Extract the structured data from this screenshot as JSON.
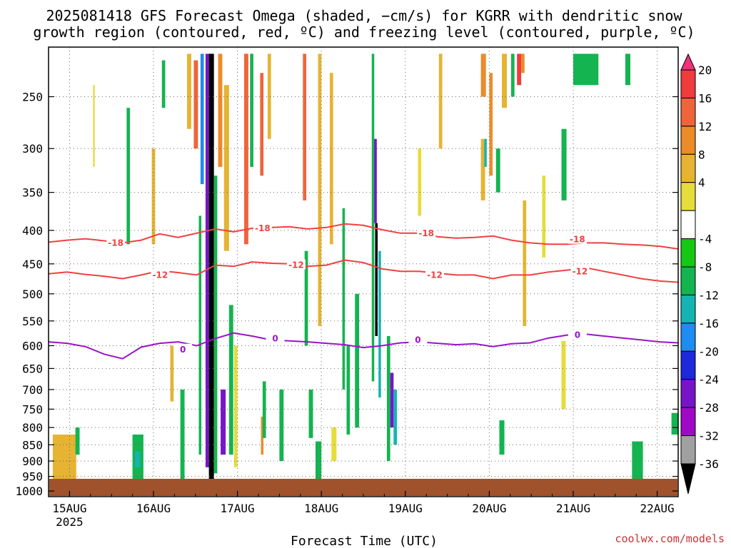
{
  "chart_data": {
    "type": "heatmap",
    "title_line1": "2025081418 GFS Forecast Omega (shaded, −cm/s) for KGRR with dendritic snow",
    "title_line2": "growth region (contoured, red, ºC) and freezing level (contoured, purple, ºC)",
    "xlabel": "Forecast Time (UTC)",
    "ylabel": "",
    "credit": "coolwx.com/models",
    "x_ticks": [
      "15AUG",
      "16AUG",
      "17AUG",
      "18AUG",
      "19AUG",
      "20AUG",
      "21AUG",
      "22AUG"
    ],
    "x_year": "2025",
    "y_ticks": [
      250,
      300,
      350,
      400,
      450,
      500,
      550,
      600,
      650,
      700,
      750,
      800,
      850,
      900,
      950,
      1000
    ],
    "y_scale": "log-pressure (hPa), inverted",
    "ylim": [
      1020,
      210
    ],
    "xlim_days": [
      14.75,
      22.25
    ],
    "grid": "dotted",
    "colorbar": {
      "labels": [
        "20",
        "16",
        "12",
        "8",
        "4",
        "-4",
        "-8",
        "-12",
        "-16",
        "-20",
        "-24",
        "-28",
        "-32",
        "-36"
      ],
      "colors_top_to_bottom": [
        "#f0327a",
        "#f03c3c",
        "#f0643c",
        "#eb8c28",
        "#e6b432",
        "#e6dc3c",
        "#ffffff",
        "#14c814",
        "#14b450",
        "#14b4b4",
        "#1e8cf0",
        "#1e28dc",
        "#7814c8",
        "#a008c8",
        "#a0a0a0",
        "#000000"
      ]
    },
    "contours": [
      {
        "name": "-18",
        "color": "#f04040",
        "values_hpa": [
          417,
          414,
          412,
          415,
          418,
          414,
          405,
          410,
          404,
          398,
          402,
          397,
          396,
          395,
          398,
          396,
          391,
          393,
          399,
          404,
          404,
          409,
          411,
          410,
          408,
          414,
          418,
          420,
          420,
          418,
          418,
          420,
          421,
          423,
          427
        ]
      },
      {
        "name": "-12",
        "color": "#f04040",
        "values_hpa": [
          466,
          463,
          467,
          470,
          474,
          468,
          461,
          464,
          468,
          452,
          454,
          447,
          449,
          450,
          454,
          452,
          444,
          448,
          458,
          462,
          462,
          465,
          468,
          468,
          474,
          468,
          468,
          463,
          460,
          456,
          462,
          468,
          474,
          478,
          480
        ]
      },
      {
        "name": "0",
        "color": "#9a14c8",
        "values_hpa": [
          592,
          595,
          602,
          618,
          628,
          603,
          595,
          592,
          600,
          585,
          574,
          580,
          588,
          590,
          592,
          595,
          598,
          604,
          600,
          594,
          592,
          595,
          598,
          596,
          602,
          596,
          594,
          584,
          578,
          576,
          580,
          584,
          588,
          592,
          594
        ]
      }
    ],
    "contour_labels": [
      {
        "text": "-18",
        "day": 15.55,
        "hpa": 418
      },
      {
        "text": "-18",
        "day": 17.3,
        "hpa": 397
      },
      {
        "text": "-18",
        "day": 19.25,
        "hpa": 404
      },
      {
        "text": "-18",
        "day": 21.05,
        "hpa": 413
      },
      {
        "text": "-12",
        "day": 16.08,
        "hpa": 468
      },
      {
        "text": "-12",
        "day": 17.7,
        "hpa": 452
      },
      {
        "text": "-12",
        "day": 19.35,
        "hpa": 468
      },
      {
        "text": "-12",
        "day": 21.08,
        "hpa": 462
      },
      {
        "text": "0",
        "day": 16.35,
        "hpa": 608
      },
      {
        "text": "0",
        "day": 17.45,
        "hpa": 585
      },
      {
        "text": "0",
        "day": 19.15,
        "hpa": 588
      },
      {
        "text": "0",
        "day": 21.05,
        "hpa": 578
      }
    ],
    "omega_cells": [
      {
        "d0": 16.62,
        "d1": 16.66,
        "p0": 215,
        "p1": 920,
        "v": -26
      },
      {
        "d0": 16.66,
        "d1": 16.72,
        "p0": 215,
        "p1": 960,
        "v": -40
      },
      {
        "d0": 16.72,
        "d1": 16.76,
        "p0": 330,
        "p1": 940,
        "v": -10
      },
      {
        "d0": 16.56,
        "d1": 16.6,
        "p0": 215,
        "p1": 340,
        "v": -18
      },
      {
        "d0": 16.54,
        "d1": 16.57,
        "p0": 380,
        "p1": 880,
        "v": -9
      },
      {
        "d0": 16.48,
        "d1": 16.53,
        "p0": 220,
        "p1": 300,
        "v": 14
      },
      {
        "d0": 16.77,
        "d1": 16.82,
        "p0": 215,
        "p1": 320,
        "v": 10
      },
      {
        "d0": 16.84,
        "d1": 16.9,
        "p0": 240,
        "p1": 430,
        "v": 6
      },
      {
        "d0": 16.8,
        "d1": 16.86,
        "p0": 700,
        "p1": 880,
        "v": -24
      },
      {
        "d0": 16.9,
        "d1": 16.95,
        "p0": 520,
        "p1": 880,
        "v": -9
      },
      {
        "d0": 16.96,
        "d1": 17.0,
        "p0": 600,
        "p1": 920,
        "v": 5
      },
      {
        "d0": 17.08,
        "d1": 17.13,
        "p0": 215,
        "p1": 420,
        "v": 14
      },
      {
        "d0": 17.15,
        "d1": 17.19,
        "p0": 215,
        "p1": 320,
        "v": -8
      },
      {
        "d0": 17.27,
        "d1": 17.31,
        "p0": 230,
        "p1": 330,
        "v": 16
      },
      {
        "d0": 17.28,
        "d1": 17.31,
        "p0": 770,
        "p1": 880,
        "v": 13
      },
      {
        "d0": 17.3,
        "d1": 17.34,
        "p0": 680,
        "p1": 830,
        "v": -8
      },
      {
        "d0": 17.5,
        "d1": 17.55,
        "p0": 700,
        "p1": 900,
        "v": -9
      },
      {
        "d0": 17.36,
        "d1": 17.4,
        "p0": 215,
        "p1": 290,
        "v": 6
      },
      {
        "d0": 17.78,
        "d1": 17.82,
        "p0": 215,
        "p1": 360,
        "v": 14
      },
      {
        "d0": 17.8,
        "d1": 17.84,
        "p0": 430,
        "p1": 600,
        "v": -8
      },
      {
        "d0": 17.85,
        "d1": 17.9,
        "p0": 700,
        "p1": 830,
        "v": -8
      },
      {
        "d0": 17.96,
        "d1": 18.0,
        "p0": 215,
        "p1": 560,
        "v": 6
      },
      {
        "d0": 18.1,
        "d1": 18.14,
        "p0": 230,
        "p1": 420,
        "v": 6
      },
      {
        "d0": 18.25,
        "d1": 18.28,
        "p0": 370,
        "p1": 700,
        "v": -9
      },
      {
        "d0": 18.3,
        "d1": 18.34,
        "p0": 600,
        "p1": 820,
        "v": -9
      },
      {
        "d0": 18.4,
        "d1": 18.45,
        "p0": 500,
        "p1": 800,
        "v": -10
      },
      {
        "d0": 18.62,
        "d1": 18.66,
        "p0": 290,
        "p1": 390,
        "v": -24
      },
      {
        "d0": 18.64,
        "d1": 18.67,
        "p0": 390,
        "p1": 580,
        "v": -36
      },
      {
        "d0": 18.6,
        "d1": 18.63,
        "p0": 215,
        "p1": 680,
        "v": -9
      },
      {
        "d0": 18.68,
        "d1": 18.71,
        "p0": 430,
        "p1": 720,
        "v": -12
      },
      {
        "d0": 18.82,
        "d1": 18.86,
        "p0": 660,
        "p1": 800,
        "v": -26
      },
      {
        "d0": 18.78,
        "d1": 18.82,
        "p0": 580,
        "p1": 900,
        "v": -10
      },
      {
        "d0": 18.86,
        "d1": 18.9,
        "p0": 700,
        "p1": 850,
        "v": -14
      },
      {
        "d0": 19.15,
        "d1": 19.19,
        "p0": 300,
        "p1": 380,
        "v": 5
      },
      {
        "d0": 19.4,
        "d1": 19.44,
        "p0": 215,
        "p1": 300,
        "v": 6
      },
      {
        "d0": 19.9,
        "d1": 19.96,
        "p0": 215,
        "p1": 250,
        "v": 10
      },
      {
        "d0": 19.9,
        "d1": 19.95,
        "p0": 290,
        "p1": 360,
        "v": 6
      },
      {
        "d0": 19.94,
        "d1": 19.97,
        "p0": 290,
        "p1": 320,
        "v": -14
      },
      {
        "d0": 20.0,
        "d1": 20.04,
        "p0": 230,
        "p1": 330,
        "v": 10
      },
      {
        "d0": 20.08,
        "d1": 20.13,
        "p0": 300,
        "p1": 350,
        "v": -9
      },
      {
        "d0": 20.15,
        "d1": 20.21,
        "p0": 215,
        "p1": 260,
        "v": 8
      },
      {
        "d0": 20.26,
        "d1": 20.3,
        "p0": 215,
        "p1": 250,
        "v": -8
      },
      {
        "d0": 20.33,
        "d1": 20.38,
        "p0": 215,
        "p1": 240,
        "v": 18
      },
      {
        "d0": 20.38,
        "d1": 20.42,
        "p0": 215,
        "p1": 230,
        "v": 12
      },
      {
        "d0": 20.12,
        "d1": 20.18,
        "p0": 780,
        "p1": 880,
        "v": -8
      },
      {
        "d0": 20.4,
        "d1": 20.44,
        "p0": 360,
        "p1": 560,
        "v": 6
      },
      {
        "d0": 20.63,
        "d1": 20.67,
        "p0": 330,
        "p1": 440,
        "v": 5
      },
      {
        "d0": 20.86,
        "d1": 20.92,
        "p0": 280,
        "p1": 360,
        "v": -8
      },
      {
        "d0": 20.86,
        "d1": 20.91,
        "p0": 590,
        "p1": 750,
        "v": 5
      },
      {
        "d0": 21.0,
        "d1": 21.3,
        "p0": 215,
        "p1": 240,
        "v": -8
      },
      {
        "d0": 21.62,
        "d1": 21.68,
        "p0": 215,
        "p1": 240,
        "v": -8
      },
      {
        "d0": 21.7,
        "d1": 21.83,
        "p0": 840,
        "p1": 960,
        "v": -8
      },
      {
        "d0": 22.17,
        "d1": 22.25,
        "p0": 760,
        "p1": 820,
        "v": -8
      },
      {
        "d0": 14.8,
        "d1": 15.08,
        "p0": 820,
        "p1": 960,
        "v": 6
      },
      {
        "d0": 15.07,
        "d1": 15.12,
        "p0": 800,
        "p1": 880,
        "v": -8
      },
      {
        "d0": 15.28,
        "d1": 15.3,
        "p0": 240,
        "p1": 320,
        "v": 5
      },
      {
        "d0": 15.68,
        "d1": 15.72,
        "p0": 260,
        "p1": 420,
        "v": -8
      },
      {
        "d0": 15.75,
        "d1": 15.88,
        "p0": 820,
        "p1": 960,
        "v": -8
      },
      {
        "d0": 15.78,
        "d1": 15.84,
        "p0": 870,
        "p1": 920,
        "v": -14
      },
      {
        "d0": 15.98,
        "d1": 16.02,
        "p0": 300,
        "p1": 420,
        "v": 6
      },
      {
        "d0": 16.1,
        "d1": 16.14,
        "p0": 220,
        "p1": 260,
        "v": -8
      },
      {
        "d0": 16.2,
        "d1": 16.24,
        "p0": 600,
        "p1": 730,
        "v": 6
      },
      {
        "d0": 16.32,
        "d1": 16.37,
        "p0": 700,
        "p1": 960,
        "v": -9
      },
      {
        "d0": 16.4,
        "d1": 16.45,
        "p0": 215,
        "p1": 280,
        "v": 6
      },
      {
        "d0": 17.93,
        "d1": 18.0,
        "p0": 840,
        "p1": 960,
        "v": -9
      },
      {
        "d0": 18.12,
        "d1": 18.18,
        "p0": 800,
        "p1": 900,
        "v": 5
      }
    ]
  }
}
